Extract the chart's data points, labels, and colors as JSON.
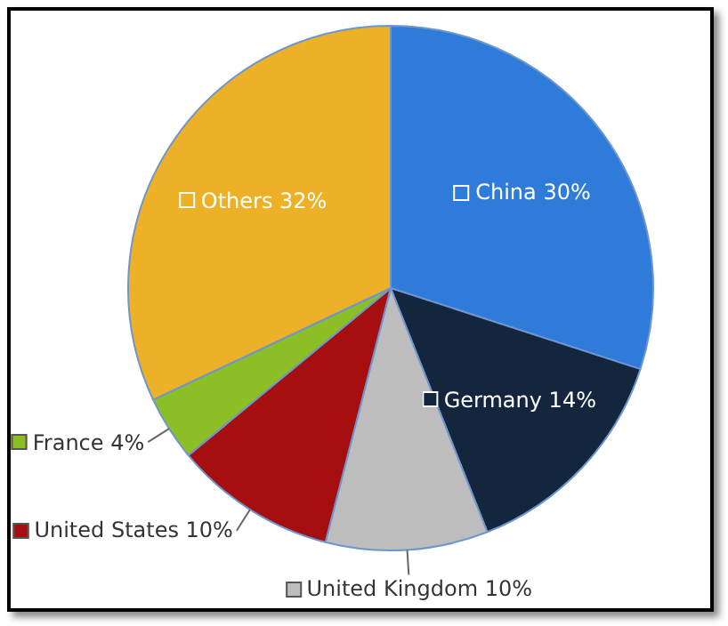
{
  "chart_data": {
    "type": "pie",
    "categories": [
      "China",
      "Germany",
      "United Kingdom",
      "United States",
      "France",
      "Others"
    ],
    "values": [
      30,
      14,
      10,
      10,
      4,
      32
    ],
    "value_labels": [
      "30%",
      "14%",
      "10%",
      "10%",
      "4%",
      "32%"
    ],
    "colors": [
      "#2f7bd9",
      "#13263d",
      "#bdbdbd",
      "#a50f0f",
      "#8cbf26",
      "#ecb126"
    ],
    "legend": "bottom left"
  }
}
